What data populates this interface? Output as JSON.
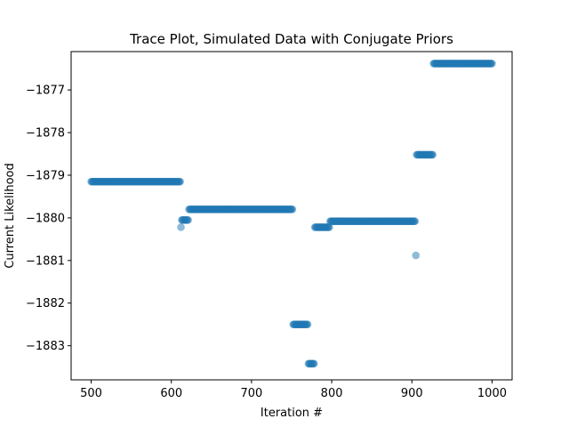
{
  "chart_data": {
    "type": "scatter",
    "title": "Trace Plot, Simulated Data with Conjugate Priors",
    "xlabel": "Iteration #",
    "ylabel": "Current Likelihood",
    "xlim": [
      475,
      1025
    ],
    "ylim": [
      -1883.8,
      -1876.1
    ],
    "xticks": [
      500,
      600,
      700,
      800,
      900,
      1000
    ],
    "xtick_labels": [
      "500",
      "600",
      "700",
      "800",
      "900",
      "1000"
    ],
    "yticks": [
      -1883,
      -1882,
      -1881,
      -1880,
      -1879,
      -1878,
      -1877
    ],
    "ytick_labels": [
      "−1883",
      "−1882",
      "−1881",
      "−1880",
      "−1879",
      "−1878",
      "−1877"
    ],
    "grid": false,
    "marker_color": "#1f77b4",
    "marker_alpha": 0.5,
    "segments": [
      {
        "x_start": 500,
        "x_end": 611,
        "y": -1879.15
      },
      {
        "x_start": 612,
        "x_end": 612,
        "y": -1880.22
      },
      {
        "x_start": 613,
        "x_end": 621,
        "y": -1880.05
      },
      {
        "x_start": 622,
        "x_end": 751,
        "y": -1879.8
      },
      {
        "x_start": 752,
        "x_end": 770,
        "y": -1882.5
      },
      {
        "x_start": 771,
        "x_end": 778,
        "y": -1883.42
      },
      {
        "x_start": 779,
        "x_end": 797,
        "y": -1880.22
      },
      {
        "x_start": 798,
        "x_end": 904,
        "y": -1880.08
      },
      {
        "x_start": 905,
        "x_end": 905,
        "y": -1880.88
      },
      {
        "x_start": 906,
        "x_end": 926,
        "y": -1878.52
      },
      {
        "x_start": 927,
        "x_end": 1000,
        "y": -1876.38
      }
    ]
  }
}
